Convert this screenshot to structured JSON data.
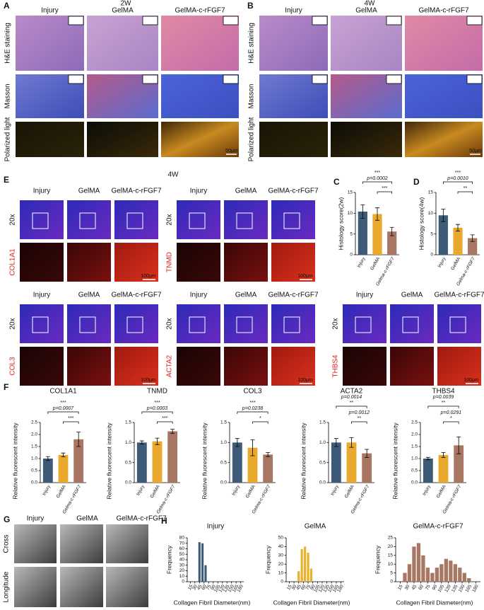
{
  "figure": {
    "A": {
      "label": "A",
      "title": "2W",
      "columns": [
        "Injury",
        "GelMA",
        "GelMA-c-rFGF7"
      ],
      "rows": [
        "H&E staining",
        "Masson",
        "Polarized light"
      ],
      "scale_bar": "50μm"
    },
    "B": {
      "label": "B",
      "title": "4W",
      "columns": [
        "Injury",
        "GelMA",
        "GelMA-c-rFGF7"
      ],
      "rows": [
        "H&E staining",
        "Masson",
        "Polarized light"
      ],
      "scale_bar": "50μm"
    },
    "E": {
      "label": "E",
      "title": "4W",
      "groups": [
        {
          "columns": [
            "Injury",
            "GelMA",
            "GelMA-c-rFGF7"
          ],
          "magnification": "20x",
          "marker": "COL1A1",
          "scale_bar": "100μm"
        },
        {
          "columns": [
            "Injury",
            "GelMA",
            "GelMA-c-rFGF7"
          ],
          "magnification": "20x",
          "marker": "TNMD",
          "scale_bar": "100μm"
        },
        {
          "columns": [
            "Injury",
            "GelMA",
            "GelMA-c-rFGF7"
          ],
          "magnification": "20x",
          "marker": "COL3",
          "scale_bar": "100μm"
        },
        {
          "columns": [
            "Injury",
            "GelMA",
            "GelMA-c-rFGF7"
          ],
          "magnification": "20x",
          "marker": "ACTA2",
          "scale_bar": "100μm"
        },
        {
          "columns": [
            "Injury",
            "GelMA",
            "GelMA-c-rFGF7"
          ],
          "magnification": "20x",
          "marker": "THBS4",
          "scale_bar": "100μm"
        }
      ]
    },
    "G": {
      "label": "G",
      "columns": [
        "Injury",
        "GelMA",
        "GelMA-c-rFGF7"
      ],
      "rows": [
        "Cross",
        "Longitude"
      ]
    }
  },
  "chart_data": [
    {
      "type": "bar",
      "panel_label": "C",
      "y_label": "Histology score(2w)",
      "categories": [
        "Injury",
        "GelMA",
        "Gelma-c-rFGF7"
      ],
      "values": [
        10.4,
        9.8,
        5.6
      ],
      "errors": [
        1.6,
        1.5,
        1.0
      ],
      "colors": [
        "#3d5a78",
        "#e8a92c",
        "#a87763"
      ],
      "ylim": [
        0,
        15
      ],
      "yticks": [
        0,
        5,
        10,
        15
      ],
      "significance": [
        [
          "***",
          "p=0.0002"
        ],
        [
          "***"
        ]
      ]
    },
    {
      "type": "bar",
      "panel_label": "D",
      "y_label": "Histology score(4w)",
      "categories": [
        "Injury",
        "GelMA",
        "Gelma-c-rFGF7"
      ],
      "values": [
        9.5,
        6.5,
        4.0
      ],
      "errors": [
        1.5,
        0.8,
        0.8
      ],
      "colors": [
        "#3d5a78",
        "#e8a92c",
        "#a87763"
      ],
      "ylim": [
        0,
        15
      ],
      "yticks": [
        0,
        5,
        10,
        15
      ],
      "significance": [
        [
          "***",
          "p=0.0010"
        ],
        [
          "**"
        ]
      ]
    },
    {
      "type": "bar",
      "panel_label": "F",
      "title": "COL1A1",
      "y_label": "Relative fluorescent intensity",
      "categories": [
        "Injury",
        "GelMA",
        "Gelma-c-rFGF7"
      ],
      "values": [
        1.0,
        1.15,
        1.8
      ],
      "errors": [
        0.08,
        0.08,
        0.3
      ],
      "colors": [
        "#3d5a78",
        "#e8a92c",
        "#a87763"
      ],
      "ylim": [
        0,
        2.5
      ],
      "yticks": [
        {
          "value": 0,
          "label": "0.0"
        },
        {
          "value": 0.5,
          "label": "0.5"
        },
        {
          "value": 1,
          "label": "1.0"
        },
        {
          "value": 1.5,
          "label": "1.5"
        },
        {
          "value": 2,
          "label": "2.0"
        },
        {
          "value": 2.5,
          "label": "2.5"
        }
      ],
      "significance": [
        [
          "***",
          "p=0.0007"
        ],
        [
          "***"
        ]
      ]
    },
    {
      "type": "bar",
      "title": "TNMD",
      "y_label": "Relative fluorescent intensity",
      "categories": [
        "Injury",
        "GelMA",
        "Gelma-c-rFGF7"
      ],
      "values": [
        1.0,
        1.03,
        1.28
      ],
      "errors": [
        0.04,
        0.08,
        0.05
      ],
      "colors": [
        "#3d5a78",
        "#e8a92c",
        "#a87763"
      ],
      "ylim": [
        0,
        1.5
      ],
      "yticks": [
        {
          "value": 0,
          "label": "0.0"
        },
        {
          "value": 0.5,
          "label": "0.5"
        },
        {
          "value": 1,
          "label": "1.0"
        },
        {
          "value": 1.5,
          "label": "1.5"
        }
      ],
      "significance": [
        [
          "***",
          "p=0.0003"
        ],
        [
          "***"
        ]
      ]
    },
    {
      "type": "bar",
      "title": "COL3",
      "y_label": "Relative fluorescent intensity",
      "categories": [
        "Injury",
        "GelMA",
        "Gelma-c-rFGF7"
      ],
      "values": [
        1.0,
        0.87,
        0.7
      ],
      "errors": [
        0.1,
        0.2,
        0.05
      ],
      "colors": [
        "#3d5a78",
        "#e8a92c",
        "#a87763"
      ],
      "ylim": [
        0,
        1.5
      ],
      "yticks": [
        {
          "value": 0,
          "label": "0.0"
        },
        {
          "value": 0.5,
          "label": "0.5"
        },
        {
          "value": 1,
          "label": "1.0"
        },
        {
          "value": 1.5,
          "label": "1.5"
        }
      ],
      "significance": [
        [
          "***",
          "p=0.0238"
        ],
        [
          "*"
        ]
      ]
    },
    {
      "type": "bar",
      "title": "ACTA2",
      "y_label": "Relative fluorescent intensity",
      "categories": [
        "Injury",
        "GelMA",
        "Gelma-c-rFGF7"
      ],
      "values": [
        1.0,
        1.0,
        0.73
      ],
      "errors": [
        0.1,
        0.12,
        0.1
      ],
      "colors": [
        "#3d5a78",
        "#e8a92c",
        "#a87763"
      ],
      "ylim": [
        0,
        1.5
      ],
      "yticks": [
        {
          "value": 0,
          "label": "0.0"
        },
        {
          "value": 0.5,
          "label": "0.5"
        },
        {
          "value": 1,
          "label": "1.0"
        },
        {
          "value": 1.5,
          "label": "1.5"
        }
      ],
      "significance": [
        [
          "p=0.0014",
          "**"
        ],
        [
          "p=0.0012",
          "**"
        ]
      ]
    },
    {
      "type": "bar",
      "title": "THBS4",
      "y_label": "Relative fluorescent intensity",
      "categories": [
        "Injury",
        "GelMA",
        "Gelma-c-rFGF7"
      ],
      "values": [
        1.0,
        1.15,
        1.55
      ],
      "errors": [
        0.05,
        0.1,
        0.35
      ],
      "colors": [
        "#3d5a78",
        "#e8a92c",
        "#a87763"
      ],
      "ylim": [
        0,
        2.5
      ],
      "yticks": [
        {
          "value": 0,
          "label": "0.0"
        },
        {
          "value": 0.5,
          "label": "0.5"
        },
        {
          "value": 1,
          "label": "1.0"
        },
        {
          "value": 1.5,
          "label": "1.5"
        },
        {
          "value": 2,
          "label": "2.0"
        },
        {
          "value": 2.5,
          "label": "2.5"
        }
      ],
      "significance": [
        [
          "p=0.0039",
          "**"
        ],
        [
          "p=0.0291",
          "*"
        ]
      ]
    },
    {
      "type": "histogram",
      "panel_label": "H",
      "title": "Injury",
      "x_label": "Collagen Fibril Diameter(nm)",
      "y_label": "Frequency",
      "bins": [
        40,
        50,
        60,
        70
      ],
      "values": [
        72,
        70,
        30
      ],
      "color": "#3d5a78",
      "xlim": [
        5,
        190
      ],
      "ylim": [
        0,
        80
      ],
      "xticks": [
        15,
        30,
        45,
        60,
        75,
        90,
        105,
        120,
        135,
        150,
        165,
        180
      ],
      "yticks": [
        0,
        10,
        20,
        30,
        40,
        50,
        60,
        70,
        80
      ]
    },
    {
      "type": "histogram",
      "title": "GelMA",
      "x_label": "Collagen Fibril Diameter(nm)",
      "y_label": "Frequency",
      "bins": [
        40,
        50,
        60,
        70,
        80,
        90
      ],
      "values": [
        12,
        37,
        40,
        33,
        15
      ],
      "color": "#e8b22c",
      "xlim": [
        5,
        190
      ],
      "ylim": [
        0,
        50
      ],
      "xticks": [
        15,
        30,
        45,
        60,
        75,
        90,
        105,
        120,
        135,
        150,
        165,
        180
      ],
      "yticks": [
        0,
        10,
        20,
        30,
        40,
        50
      ]
    },
    {
      "type": "histogram",
      "title": "GelMA-c-rFGF7",
      "x_label": "Collagen Fibril Diameter(nm)",
      "y_label": "Frequency",
      "bins": [
        20,
        30,
        40,
        50,
        60,
        70,
        80,
        90,
        100,
        110,
        120,
        130,
        140,
        150,
        160,
        170
      ],
      "values": [
        5,
        10,
        20,
        22,
        15,
        8,
        5,
        8,
        10,
        13,
        12,
        10,
        8,
        5,
        2
      ],
      "color": "#a87763",
      "xlim": [
        5,
        190
      ],
      "ylim": [
        0,
        25
      ],
      "xticks": [
        15,
        30,
        45,
        60,
        75,
        90,
        105,
        120,
        135,
        150,
        165,
        180
      ],
      "yticks": [
        0,
        5,
        10,
        15,
        20,
        25
      ]
    }
  ]
}
